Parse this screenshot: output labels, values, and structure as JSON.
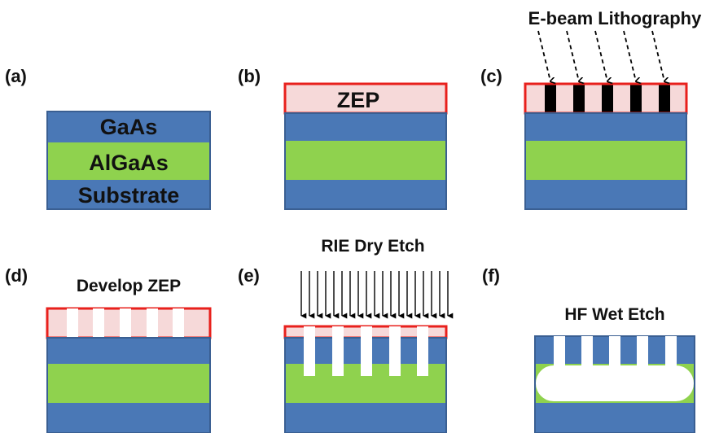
{
  "colors": {
    "gaas": "#4a78b6",
    "algaas": "#8fd24e",
    "zep_fill": "#f6d9d9",
    "zep_border": "#e8201c",
    "layer_border": "#3a5f92",
    "resist_exposed": "#000000",
    "text": "#111111"
  },
  "panels": {
    "a": {
      "label": "(a)",
      "layer_top": "GaAs",
      "layer_mid": "AlGaAs",
      "layer_bottom": "Substrate"
    },
    "b": {
      "label": "(b)",
      "resist": "ZEP"
    },
    "c": {
      "label": "(c)",
      "caption": "E-beam Lithography"
    },
    "d": {
      "label": "(d)",
      "caption": "Develop ZEP"
    },
    "e": {
      "label": "(e)",
      "caption": "RIE Dry Etch"
    },
    "f": {
      "label": "(f)",
      "caption": "HF Wet Etch"
    }
  }
}
